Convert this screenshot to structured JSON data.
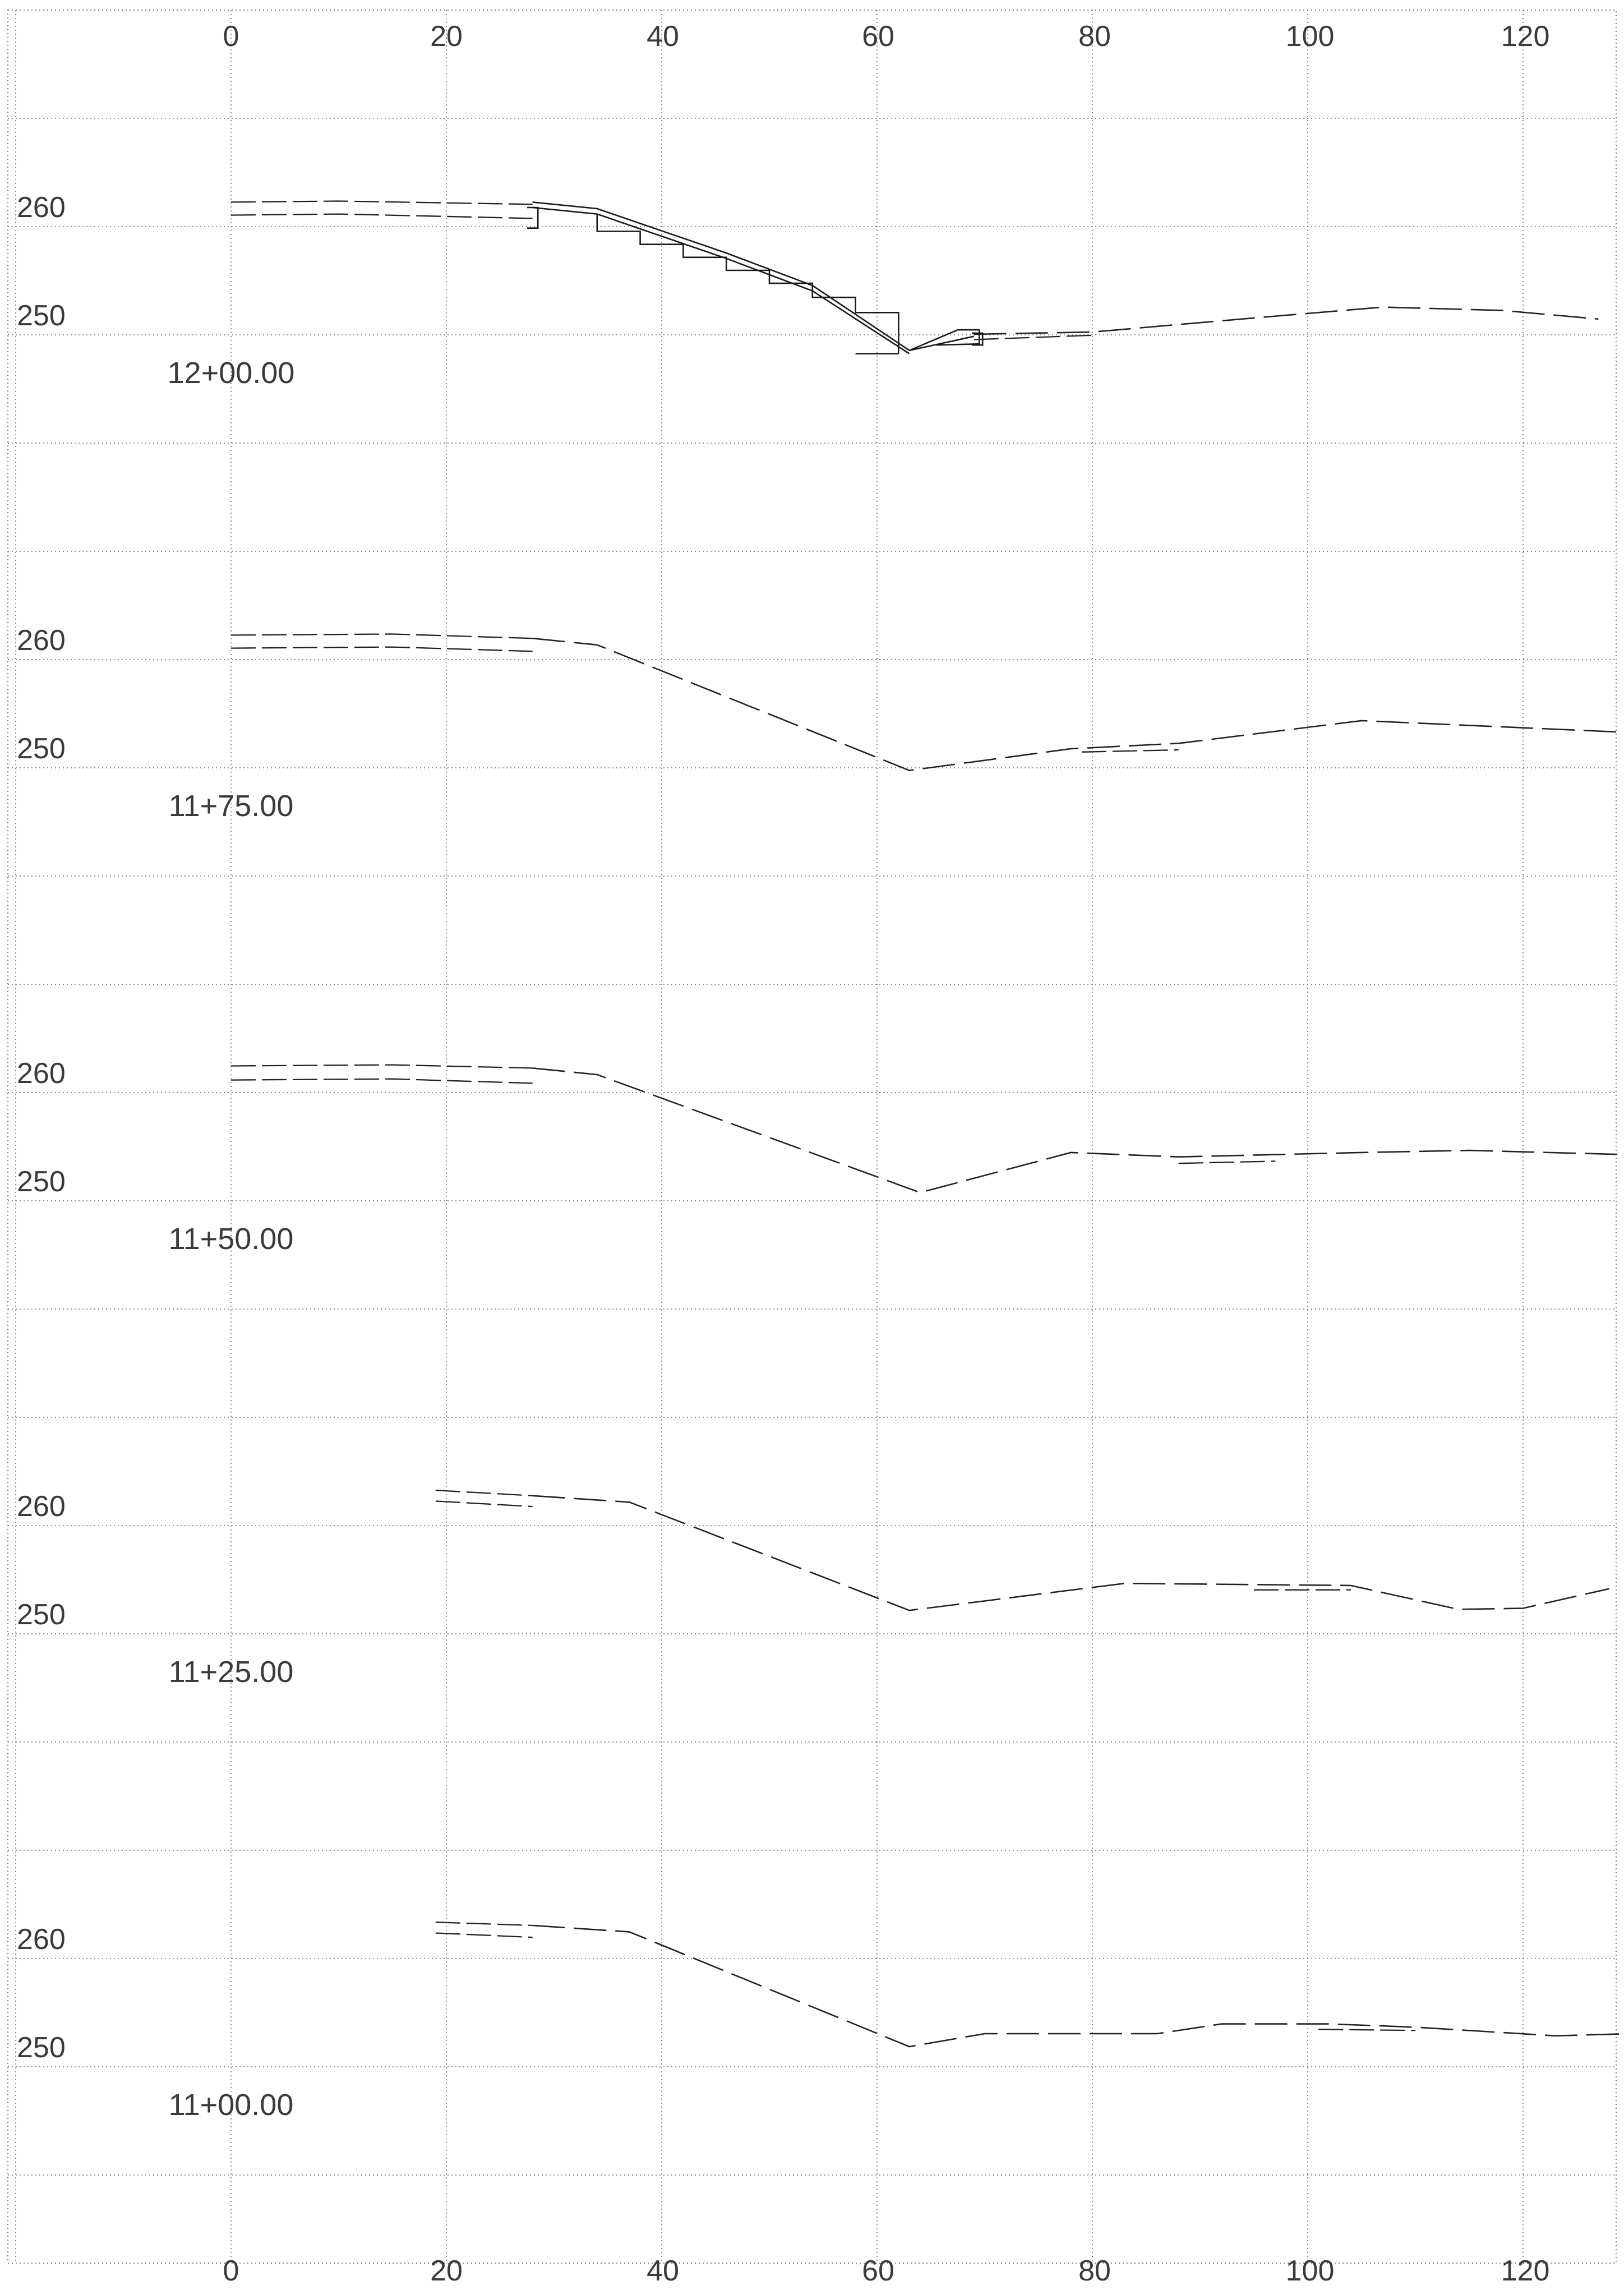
{
  "top_axis": {
    "labels": [
      "0",
      "20",
      "40",
      "60",
      "80",
      "100",
      "120"
    ]
  },
  "bottom_axis": {
    "labels": [
      "0",
      "20",
      "40",
      "60",
      "80",
      "100",
      "120"
    ]
  },
  "chart_data": [
    {
      "type": "line",
      "station_label": "12+00.00",
      "elevation_labels": [
        "260",
        "250"
      ],
      "x_unit": "ft offset",
      "y_unit": "ft elevation",
      "xlim": [
        -20,
        130
      ],
      "ylim": [
        245,
        265
      ],
      "series": [
        {
          "style": "dashed",
          "x": [
            0,
            10,
            28
          ],
          "y": [
            262.0,
            262.1,
            261.8
          ]
        },
        {
          "style": "dashed",
          "x": [
            0,
            10,
            28
          ],
          "y": [
            260.8,
            260.9,
            260.5
          ]
        },
        {
          "style": "dashed",
          "x": [
            69,
            80,
            95,
            107,
            118,
            127
          ],
          "y": [
            249.8,
            250.0,
            251.3,
            252.3,
            252.0,
            251.2
          ]
        },
        {
          "style": "dashed",
          "x": [
            69,
            80
          ],
          "y": [
            249.3,
            249.7
          ]
        },
        {
          "style": "solid",
          "x": [
            28,
            34,
            46,
            54,
            63
          ],
          "y": [
            262.0,
            261.4,
            257.3,
            254.3,
            248.3
          ]
        },
        {
          "style": "solid",
          "x": [
            28,
            34,
            46,
            54,
            63
          ],
          "y": [
            261.5,
            260.9,
            256.8,
            253.8,
            248.0
          ]
        },
        {
          "style": "solid",
          "x": [
            63,
            69
          ],
          "y": [
            248.3,
            249.6
          ]
        },
        {
          "style": "solid",
          "x": [
            27.5,
            28.5,
            28.5,
            27.5
          ],
          "y": [
            261.5,
            261.5,
            259.6,
            259.6
          ]
        },
        {
          "style": "solid",
          "x": [
            63,
            67.5,
            69.5,
            69.5,
            65.5
          ],
          "y": [
            248.3,
            250.2,
            250.2,
            248.9,
            248.8
          ]
        },
        {
          "style": "solid",
          "x": [
            68.8,
            69.8,
            69.8,
            68.8
          ],
          "y": [
            249.9,
            249.9,
            248.8,
            248.8
          ]
        },
        {
          "style": "solid",
          "x": [
            34,
            34,
            38,
            38,
            42,
            42,
            46,
            46,
            50,
            50,
            54,
            54,
            58,
            58,
            62,
            62
          ],
          "y": [
            260.9,
            259.3,
            259.3,
            258.1,
            258.1,
            256.9,
            256.9,
            255.7,
            255.7,
            254.5,
            254.5,
            253.2,
            253.2,
            251.8,
            251.8,
            248.0
          ]
        },
        {
          "style": "solid",
          "x": [
            58,
            62
          ],
          "y": [
            248.0,
            248.0
          ]
        }
      ]
    },
    {
      "type": "line",
      "station_label": "11+75.00",
      "elevation_labels": [
        "260",
        "250"
      ],
      "x_unit": "ft offset",
      "y_unit": "ft elevation",
      "xlim": [
        -20,
        130
      ],
      "ylim": [
        245,
        265
      ],
      "series": [
        {
          "style": "dashed",
          "x": [
            0,
            15,
            28
          ],
          "y": [
            262.0,
            262.1,
            261.7
          ]
        },
        {
          "style": "dashed",
          "x": [
            0,
            15,
            28
          ],
          "y": [
            260.8,
            260.9,
            260.5
          ]
        },
        {
          "style": "dashed",
          "x": [
            28,
            34,
            63,
            78,
            88,
            105,
            130
          ],
          "y": [
            261.7,
            261.1,
            249.5,
            251.5,
            252.0,
            254.1,
            253.0
          ]
        },
        {
          "style": "dashed",
          "x": [
            79,
            88
          ],
          "y": [
            251.2,
            251.4
          ]
        }
      ]
    },
    {
      "type": "line",
      "station_label": "11+50.00",
      "elevation_labels": [
        "260",
        "250"
      ],
      "x_unit": "ft offset",
      "y_unit": "ft elevation",
      "xlim": [
        -20,
        130
      ],
      "ylim": [
        245,
        265
      ],
      "series": [
        {
          "style": "dashed",
          "x": [
            0,
            15,
            28
          ],
          "y": [
            262.2,
            262.3,
            262.0
          ]
        },
        {
          "style": "dashed",
          "x": [
            0,
            15,
            28
          ],
          "y": [
            260.9,
            261.0,
            260.6
          ]
        },
        {
          "style": "dashed",
          "x": [
            28,
            34,
            64,
            78,
            88,
            105,
            115,
            130
          ],
          "y": [
            262.0,
            261.4,
            250.5,
            254.2,
            253.8,
            254.2,
            254.4,
            254.0
          ]
        },
        {
          "style": "dashed",
          "x": [
            88,
            97
          ],
          "y": [
            253.2,
            253.4
          ]
        }
      ]
    },
    {
      "type": "line",
      "station_label": "11+25.00",
      "elevation_labels": [
        "260",
        "250"
      ],
      "x_unit": "ft offset",
      "y_unit": "ft elevation",
      "xlim": [
        -20,
        130
      ],
      "ylim": [
        245,
        265
      ],
      "series": [
        {
          "style": "dashed",
          "x": [
            19,
            28
          ],
          "y": [
            263.0,
            262.5
          ]
        },
        {
          "style": "dashed",
          "x": [
            19,
            28
          ],
          "y": [
            262.0,
            261.5
          ]
        },
        {
          "style": "dashed",
          "x": [
            28,
            37,
            63,
            83,
            104,
            114,
            120,
            128
          ],
          "y": [
            262.5,
            261.9,
            251.9,
            254.4,
            254.2,
            252.0,
            252.1,
            253.9
          ]
        },
        {
          "style": "dashed",
          "x": [
            95,
            104
          ],
          "y": [
            253.8,
            253.8
          ]
        }
      ]
    },
    {
      "type": "line",
      "station_label": "11+00.00",
      "elevation_labels": [
        "260",
        "250"
      ],
      "x_unit": "ft offset",
      "y_unit": "ft elevation",
      "xlim": [
        -20,
        130
      ],
      "ylim": [
        245,
        265
      ],
      "series": [
        {
          "style": "dashed",
          "x": [
            19,
            28
          ],
          "y": [
            263.1,
            262.8
          ]
        },
        {
          "style": "dashed",
          "x": [
            19,
            28
          ],
          "y": [
            262.1,
            261.7
          ]
        },
        {
          "style": "dashed",
          "x": [
            28,
            37,
            63,
            70,
            86,
            92,
            102,
            110,
            123,
            130
          ],
          "y": [
            262.8,
            262.2,
            251.6,
            252.8,
            252.8,
            253.7,
            253.7,
            253.4,
            252.6,
            252.8
          ]
        },
        {
          "style": "dashed",
          "x": [
            101,
            110
          ],
          "y": [
            253.2,
            253.1
          ]
        }
      ]
    }
  ]
}
